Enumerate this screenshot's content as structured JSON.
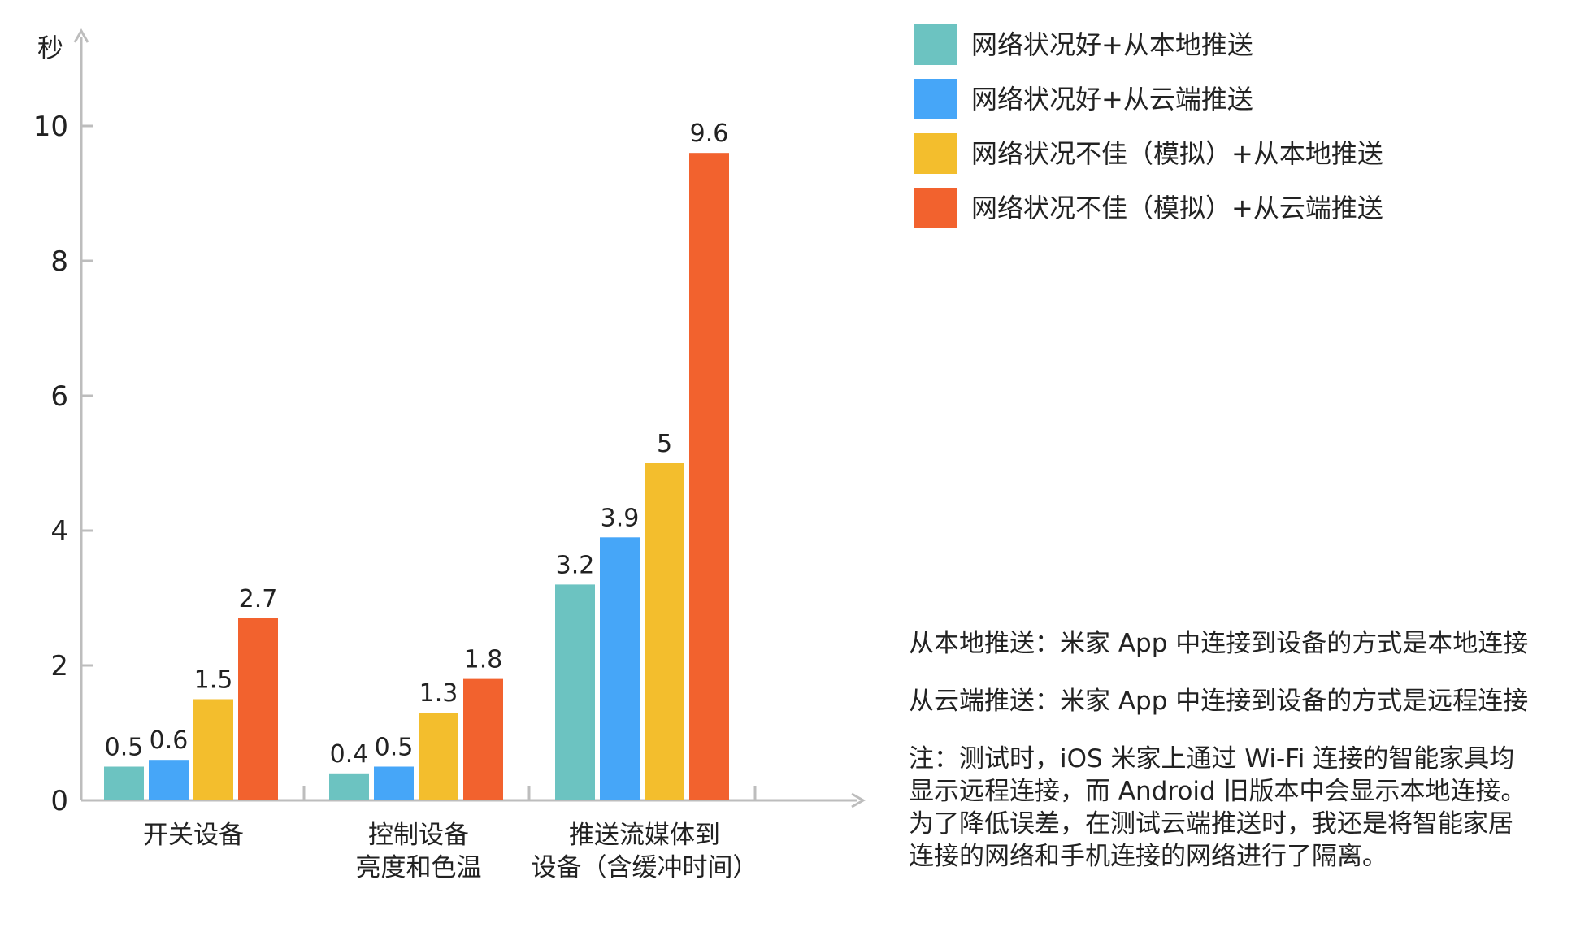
{
  "chart_data": {
    "type": "bar",
    "ylabel": "秒",
    "ylim": [
      0,
      10
    ],
    "yticks": [
      0,
      2,
      4,
      6,
      8,
      10
    ],
    "categories": [
      [
        "开关设备"
      ],
      [
        "控制设备",
        "亮度和色温"
      ],
      [
        "推送流媒体到",
        "设备（含缓冲时间）"
      ]
    ],
    "series": [
      {
        "name": "网络状况好+从本地推送",
        "color": "#6cc3c1",
        "values": [
          0.5,
          0.4,
          3.2
        ],
        "labels": [
          "0.5",
          "0.4",
          "3.2"
        ]
      },
      {
        "name": "网络状况好+从云端推送",
        "color": "#46a6f8",
        "values": [
          0.6,
          0.5,
          3.9
        ],
        "labels": [
          "0.6",
          "0.5",
          "3.9"
        ]
      },
      {
        "name": "网络状况不佳（模拟）+从本地推送",
        "color": "#f3be2d",
        "values": [
          1.5,
          1.3,
          5
        ],
        "labels": [
          "1.5",
          "1.3",
          "5"
        ]
      },
      {
        "name": "网络状况不佳（模拟）+从云端推送",
        "color": "#f2622e",
        "values": [
          2.7,
          1.8,
          9.6
        ],
        "labels": [
          "2.7",
          "1.8",
          "9.6"
        ]
      }
    ],
    "legend_position": "top-right",
    "grid": false,
    "axis_color": "#bdbdbd"
  },
  "notes": {
    "local_def": "从本地推送：米家 App 中连接到设备的方式是本地连接",
    "cloud_def": "从云端推送：米家 App 中连接到设备的方式是远程连接",
    "note_lines": [
      "注：测试时，iOS 米家上通过 Wi-Fi 连接的智能家具均",
      "显示远程连接，而 Android 旧版本中会显示本地连接。",
      "为了降低误差，在测试云端推送时，我还是将智能家居",
      "连接的网络和手机连接的网络进行了隔离。"
    ]
  }
}
